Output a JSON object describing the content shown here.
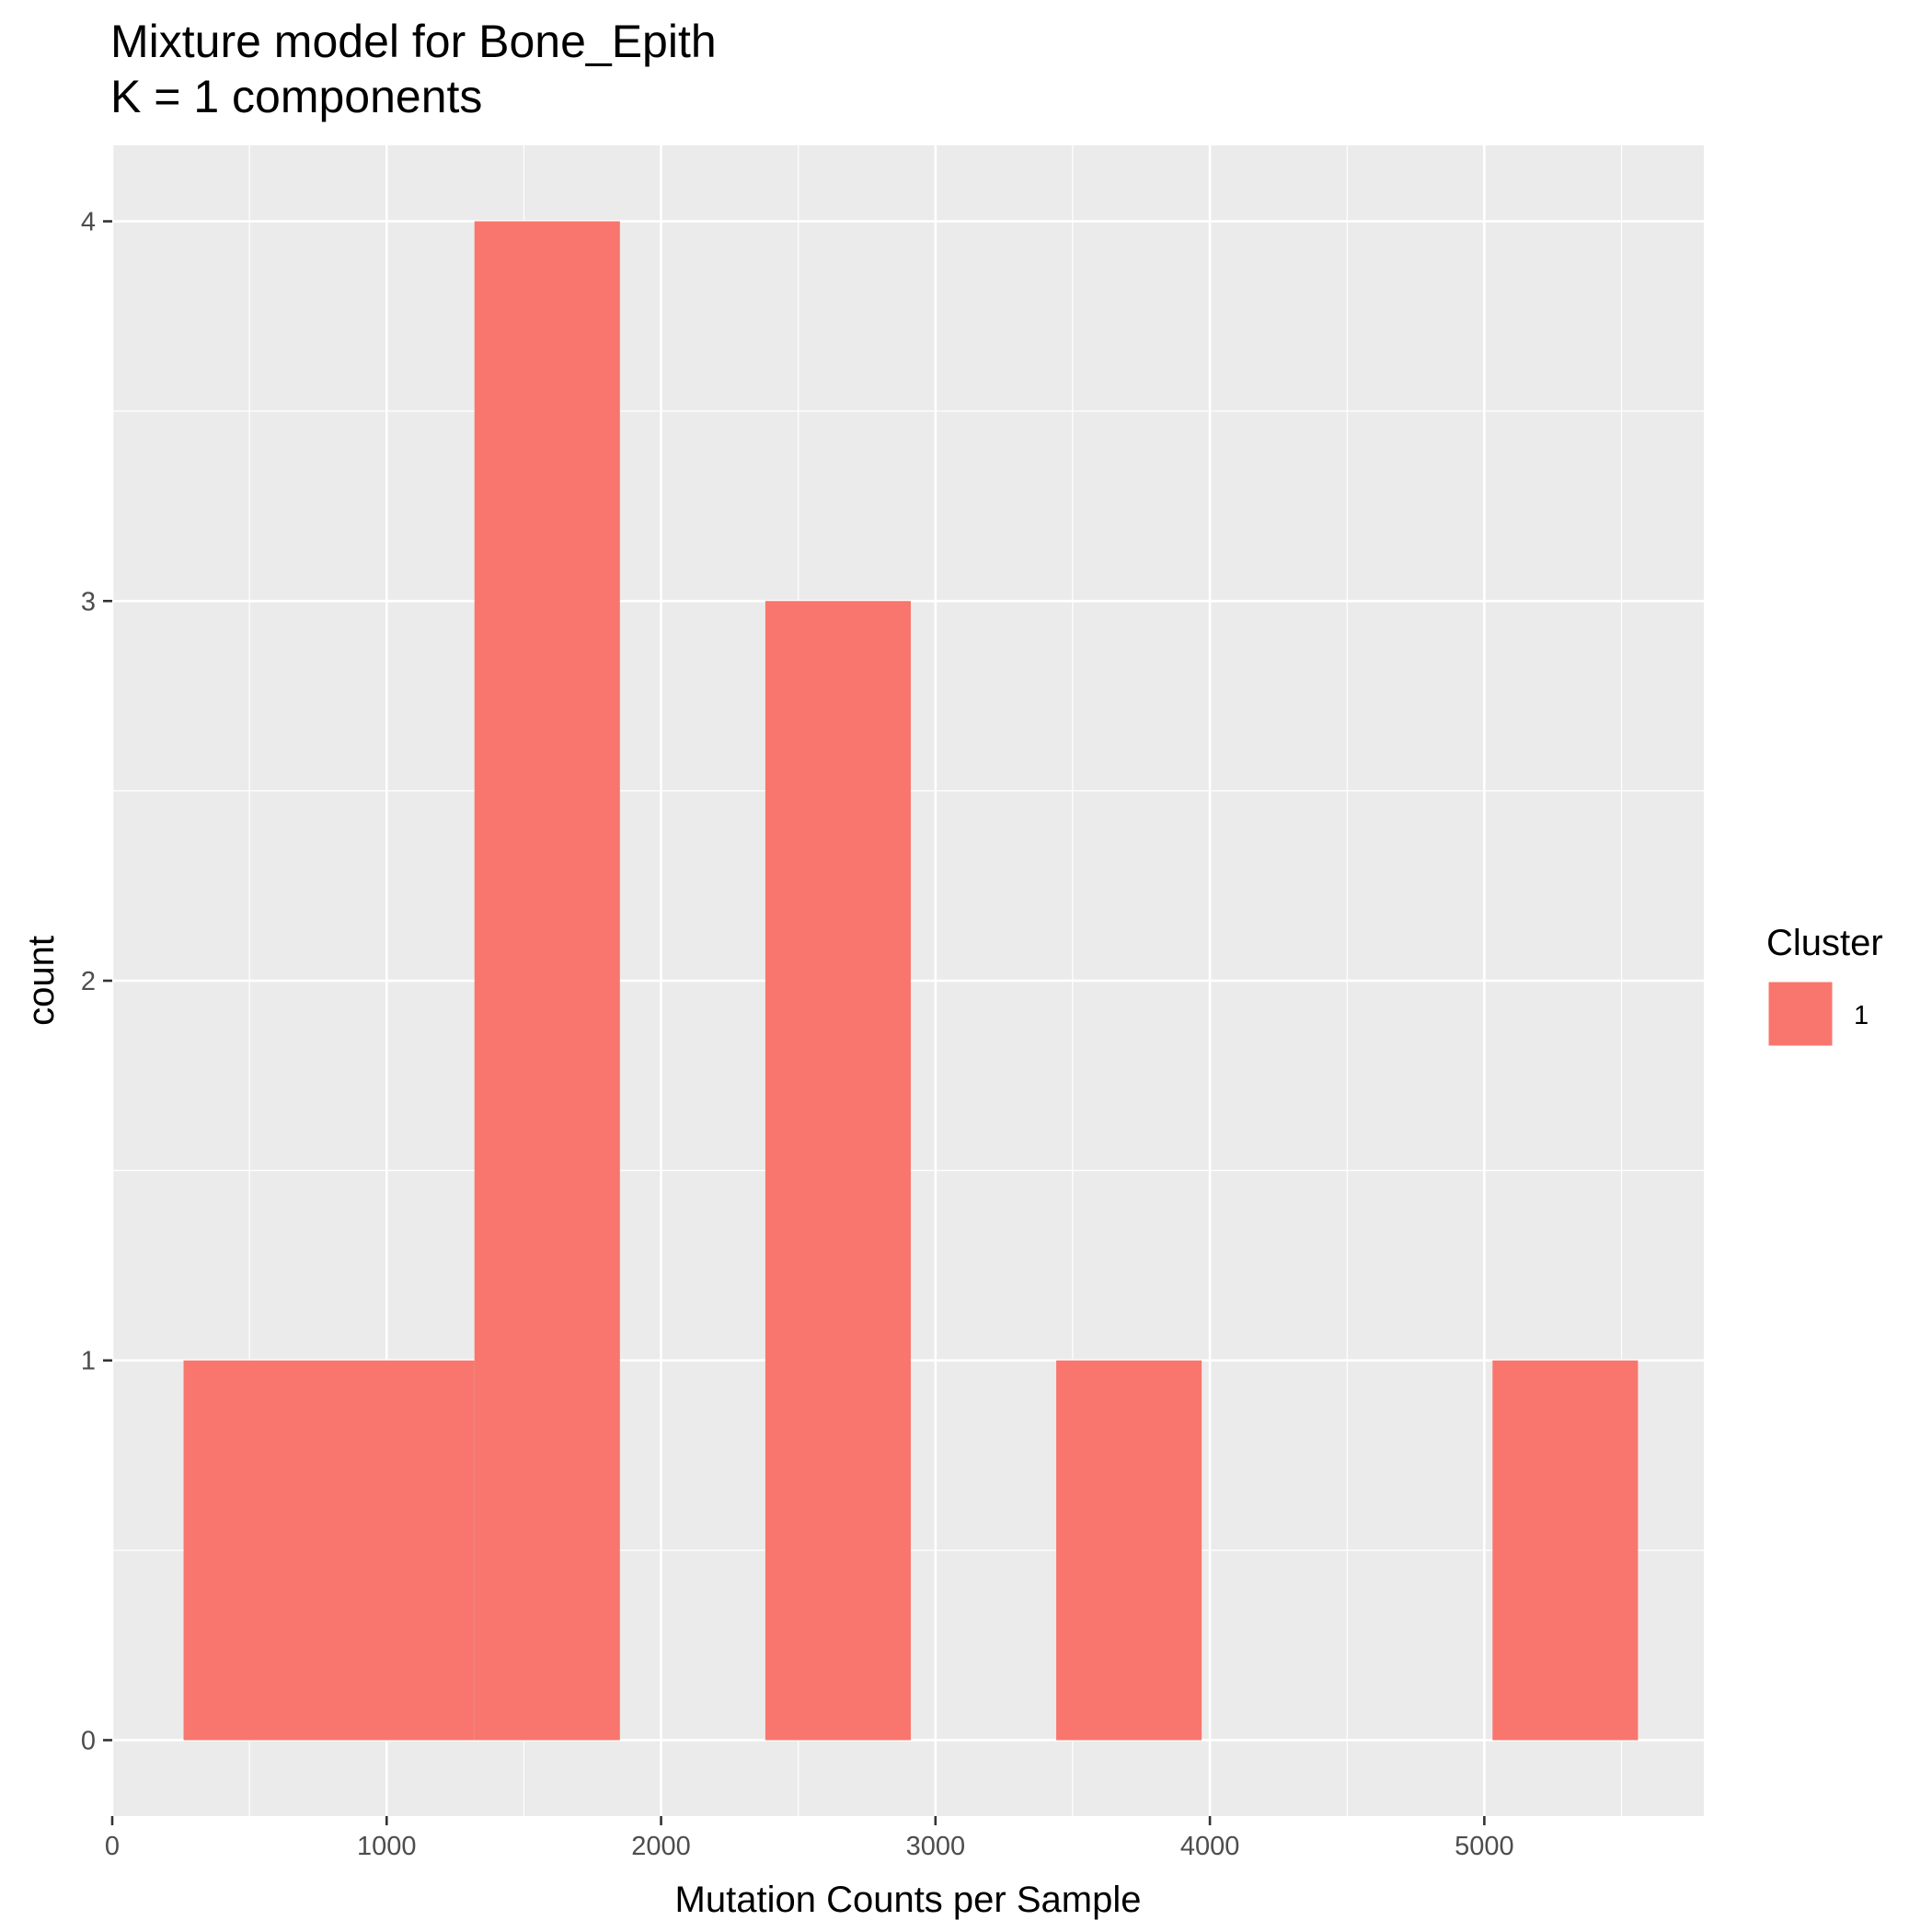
{
  "title": "Mixture model for Bone_Epith",
  "subtitle": "K = 1 components",
  "colors": {
    "bar": "#F8766D",
    "panel": "#EBEBEB",
    "grid": "#FFFFFF"
  },
  "chart_data": {
    "type": "bar",
    "subtype": "histogram",
    "title": "Mixture model for Bone_Epith",
    "subtitle": "K = 1 components",
    "xlabel": "Mutation Counts per Sample",
    "ylabel": "count",
    "xlim": [
      0,
      5800
    ],
    "ylim": [
      -0.2,
      4.2
    ],
    "xticks": [
      0,
      1000,
      2000,
      3000,
      4000,
      5000
    ],
    "xtick_labels": [
      "0",
      "1000",
      "2000",
      "3000",
      "4000",
      "5000"
    ],
    "yticks": [
      0,
      1,
      2,
      3,
      4
    ],
    "ytick_labels": [
      "0",
      "1",
      "2",
      "3",
      "4"
    ],
    "grid": true,
    "bins": [
      {
        "x0": 260,
        "x1": 1320,
        "count": 1
      },
      {
        "x0": 1320,
        "x1": 1850,
        "count": 4
      },
      {
        "x0": 2380,
        "x1": 2910,
        "count": 3
      },
      {
        "x0": 3440,
        "x1": 3970,
        "count": 1
      },
      {
        "x0": 5030,
        "x1": 5560,
        "count": 1
      }
    ],
    "legend": {
      "title": "Cluster",
      "entries": [
        "1"
      ],
      "position": "right"
    },
    "series": [
      {
        "name": "1",
        "color": "#F8766D"
      }
    ]
  }
}
